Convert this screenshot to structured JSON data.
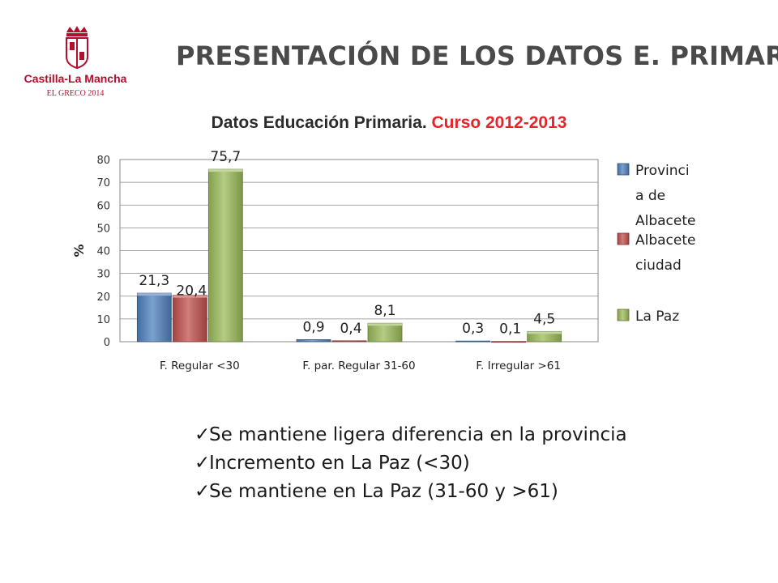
{
  "logo": {
    "name": "Castilla-La Mancha",
    "subtitle": "EL GRECO 2014",
    "color": "#b30e2b"
  },
  "page": {
    "title": "PRESENTACIÓN DE LOS DATOS E. PRIMARIA"
  },
  "chart_data": {
    "type": "bar",
    "title": "Datos Educación Primaria.",
    "title_highlight": "Curso 2012-2013",
    "title_color": "#2b2b2b",
    "title_highlight_color": "#e3262b",
    "ylabel": "%",
    "xlabel": "",
    "ylim": [
      0,
      80
    ],
    "yticks": [
      0,
      10,
      20,
      30,
      40,
      50,
      60,
      70,
      80
    ],
    "grid": true,
    "legend_position": "right",
    "categories": [
      "F. Regular <30",
      "F. par. Regular 31-60",
      "F. Irregular >61"
    ],
    "series": [
      {
        "name_lines": [
          "Provinci",
          "a de",
          "Albacete"
        ],
        "color": "#4f81bd",
        "values": [
          21.3,
          0.9,
          0.3
        ],
        "labels": [
          "21,3",
          "0,9",
          "0,3"
        ]
      },
      {
        "name_lines": [
          "Albacete",
          "ciudad"
        ],
        "color": "#c0504d",
        "values": [
          20.4,
          0.4,
          0.1
        ],
        "labels": [
          "20,4",
          "0,4",
          "0,1"
        ]
      },
      {
        "name_lines": [
          "La Paz"
        ],
        "color": "#9bbb59",
        "values": [
          75.7,
          8.1,
          4.5
        ],
        "labels": [
          "75,7",
          "8,1",
          "4,5"
        ]
      }
    ]
  },
  "bullets": [
    "Se mantiene ligera diferencia en la provincia",
    "Incremento en La Paz (<30)",
    "Se mantiene en La Paz (31-60 y >61)"
  ]
}
